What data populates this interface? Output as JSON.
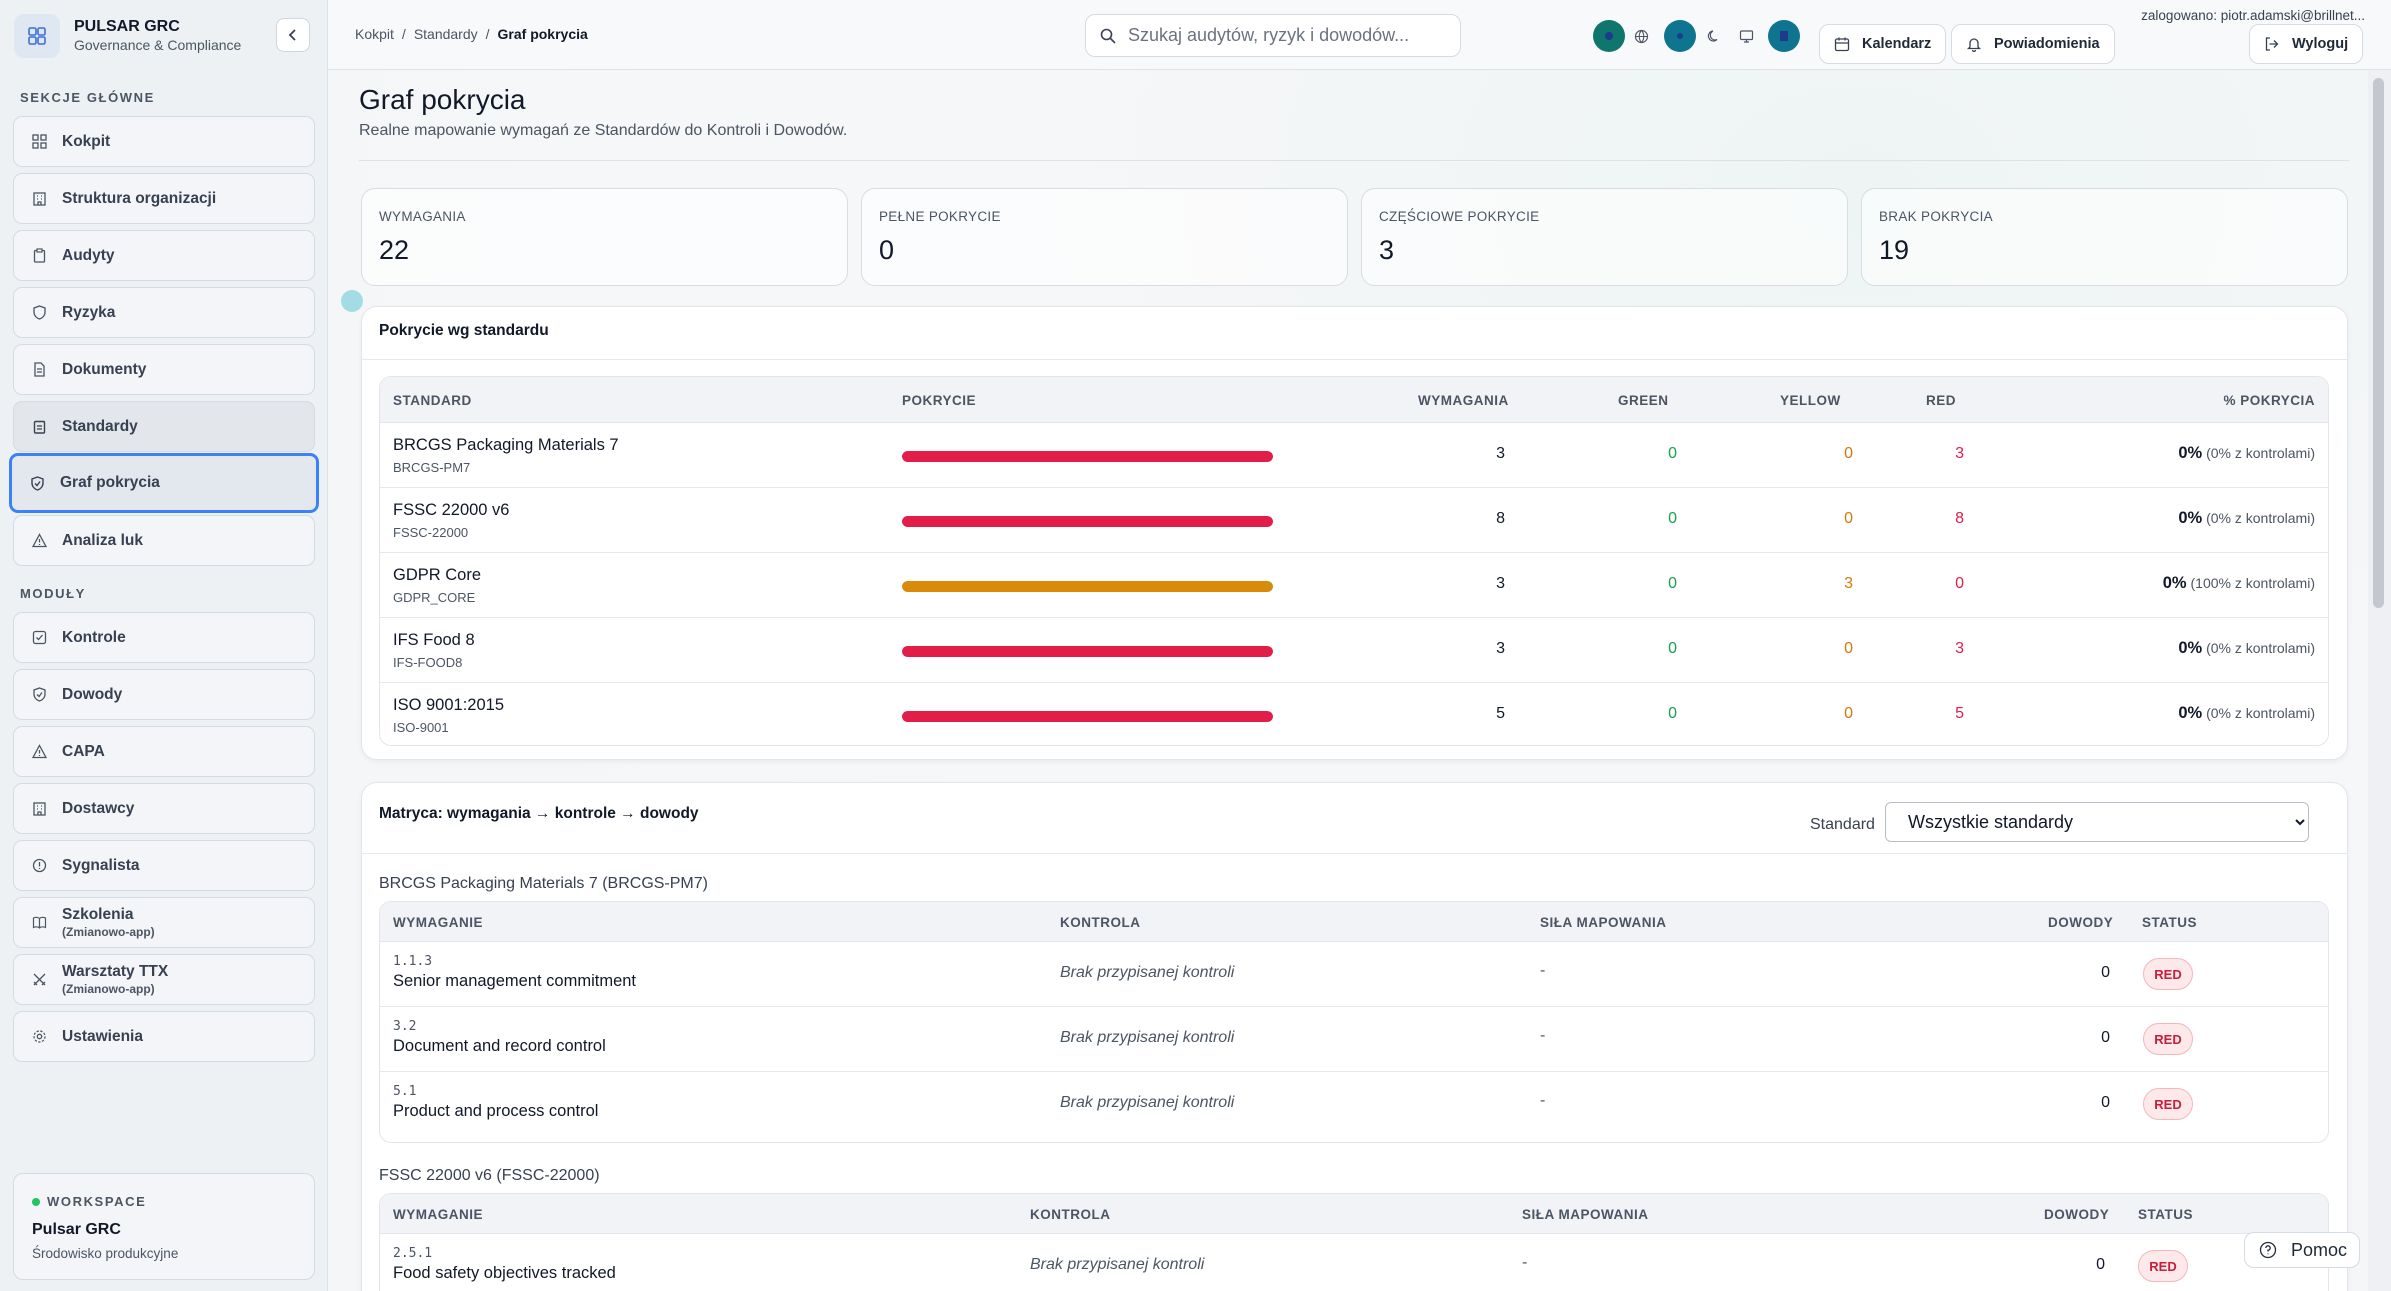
{
  "brand": {
    "title": "PULSAR GRC",
    "subtitle": "Governance & Compliance"
  },
  "sidebar": {
    "section_main": "SEKCJE GŁÓWNE",
    "section_modules": "MODUŁY",
    "main_items": [
      {
        "label": "Kokpit",
        "icon": "grid-icon"
      },
      {
        "label": "Struktura organizacji",
        "icon": "building-icon"
      },
      {
        "label": "Audyty",
        "icon": "clipboard-icon"
      },
      {
        "label": "Ryzyka",
        "icon": "shield-icon"
      },
      {
        "label": "Dokumenty",
        "icon": "document-icon"
      },
      {
        "label": "Standardy",
        "icon": "clipboard-list-icon"
      },
      {
        "label": "Graf pokrycia",
        "icon": "shield-check-icon"
      },
      {
        "label": "Analiza luk",
        "icon": "warning-icon"
      }
    ],
    "module_items": [
      {
        "label": "Kontrole",
        "sub": "",
        "icon": "checkbox-icon"
      },
      {
        "label": "Dowody",
        "sub": "",
        "icon": "shield-check-icon"
      },
      {
        "label": "CAPA",
        "sub": "",
        "icon": "warning-icon"
      },
      {
        "label": "Dostawcy",
        "sub": "",
        "icon": "building-icon"
      },
      {
        "label": "Sygnalista",
        "sub": "",
        "icon": "info-icon"
      },
      {
        "label": "Szkolenia",
        "sub": "(Zmianowo-app)",
        "icon": "book-icon"
      },
      {
        "label": "Warsztaty TTX",
        "sub": "(Zmianowo-app)",
        "icon": "swords-icon"
      },
      {
        "label": "Ustawienia",
        "sub": "",
        "icon": "gear-icon"
      }
    ],
    "workspace": {
      "label": "WORKSPACE",
      "name": "Pulsar GRC",
      "env": "Środowisko produkcyjne"
    }
  },
  "topbar": {
    "breadcrumb": [
      "Kokpit",
      "Standardy",
      "Graf pokrycia"
    ],
    "search_placeholder": "Szukaj audytów, ryzyk i dowodów...",
    "calendar": "Kalendarz",
    "notifications": "Powiadomienia",
    "logout": "Wyloguj",
    "logged_in": "zalogowano: piotr.adamski@brillnet..."
  },
  "page": {
    "title": "Graf pokrycia",
    "subtitle": "Realne mapowanie wymagań ze Standardów do Kontroli i Dowodów."
  },
  "kpis": [
    {
      "label": "WYMAGANIA",
      "value": "22"
    },
    {
      "label": "PEŁNE POKRYCIE",
      "value": "0"
    },
    {
      "label": "CZĘŚCIOWE POKRYCIE",
      "value": "3"
    },
    {
      "label": "BRAK POKRYCIA",
      "value": "19"
    }
  ],
  "coverage": {
    "title": "Pokrycie wg standardu",
    "headers": [
      "STANDARD",
      "POKRYCIE",
      "WYMAGANIA",
      "GREEN",
      "YELLOW",
      "RED",
      "% POKRYCIA"
    ],
    "rows": [
      {
        "name": "BRCGS Packaging Materials 7",
        "code": "BRCGS-PM7",
        "req": "3",
        "green": "0",
        "yellow": "0",
        "red": "3",
        "pct": "0%",
        "pct_note": "(0% z kontrolami)",
        "bar_color": "#e11d48",
        "bar_fraction": 1
      },
      {
        "name": "FSSC 22000 v6",
        "code": "FSSC-22000",
        "req": "8",
        "green": "0",
        "yellow": "0",
        "red": "8",
        "pct": "0%",
        "pct_note": "(0% z kontrolami)",
        "bar_color": "#e11d48",
        "bar_fraction": 1
      },
      {
        "name": "GDPR Core",
        "code": "GDPR_CORE",
        "req": "3",
        "green": "0",
        "yellow": "3",
        "red": "0",
        "pct": "0%",
        "pct_note": "(100% z kontrolami)",
        "bar_color": "#d88a0b",
        "bar_fraction": 1
      },
      {
        "name": "IFS Food 8",
        "code": "IFS-FOOD8",
        "req": "3",
        "green": "0",
        "yellow": "0",
        "red": "3",
        "pct": "0%",
        "pct_note": "(0% z kontrolami)",
        "bar_color": "#e11d48",
        "bar_fraction": 1
      },
      {
        "name": "ISO 9001:2015",
        "code": "ISO-9001",
        "req": "5",
        "green": "0",
        "yellow": "0",
        "red": "5",
        "pct": "0%",
        "pct_note": "(0% z kontrolami)",
        "bar_color": "#e11d48",
        "bar_fraction": 1
      }
    ]
  },
  "matrix": {
    "title": "Matryca: wymagania → kontrole → dowody",
    "filter_label": "Standard",
    "filter_value": "Wszystkie standardy",
    "headers": [
      "WYMAGANIE",
      "KONTROLA",
      "SIŁA MAPOWANIA",
      "DOWODY",
      "STATUS"
    ],
    "groups": [
      {
        "title": "BRCGS Packaging Materials 7 (BRCGS-PM7)",
        "rows": [
          {
            "code": "1.1.3",
            "name": "Senior management commitment",
            "control": "Brak przypisanej kontroli",
            "strength": "-",
            "evidence": "0",
            "status": "RED"
          },
          {
            "code": "3.2",
            "name": "Document and record control",
            "control": "Brak przypisanej kontroli",
            "strength": "-",
            "evidence": "0",
            "status": "RED"
          },
          {
            "code": "5.1",
            "name": "Product and process control",
            "control": "Brak przypisanej kontroli",
            "strength": "-",
            "evidence": "0",
            "status": "RED"
          }
        ]
      },
      {
        "title": "FSSC 22000 v6 (FSSC-22000)",
        "rows": [
          {
            "code": "2.5.1",
            "name": "Food safety objectives tracked",
            "control": "Brak przypisanej kontroli",
            "strength": "-",
            "evidence": "0",
            "status": "RED"
          }
        ]
      }
    ]
  },
  "help": "Pomoc",
  "colors": {
    "green": "#16a34a",
    "yellow": "#d97706",
    "red": "#e11d48",
    "accent": "#3b82f6"
  }
}
